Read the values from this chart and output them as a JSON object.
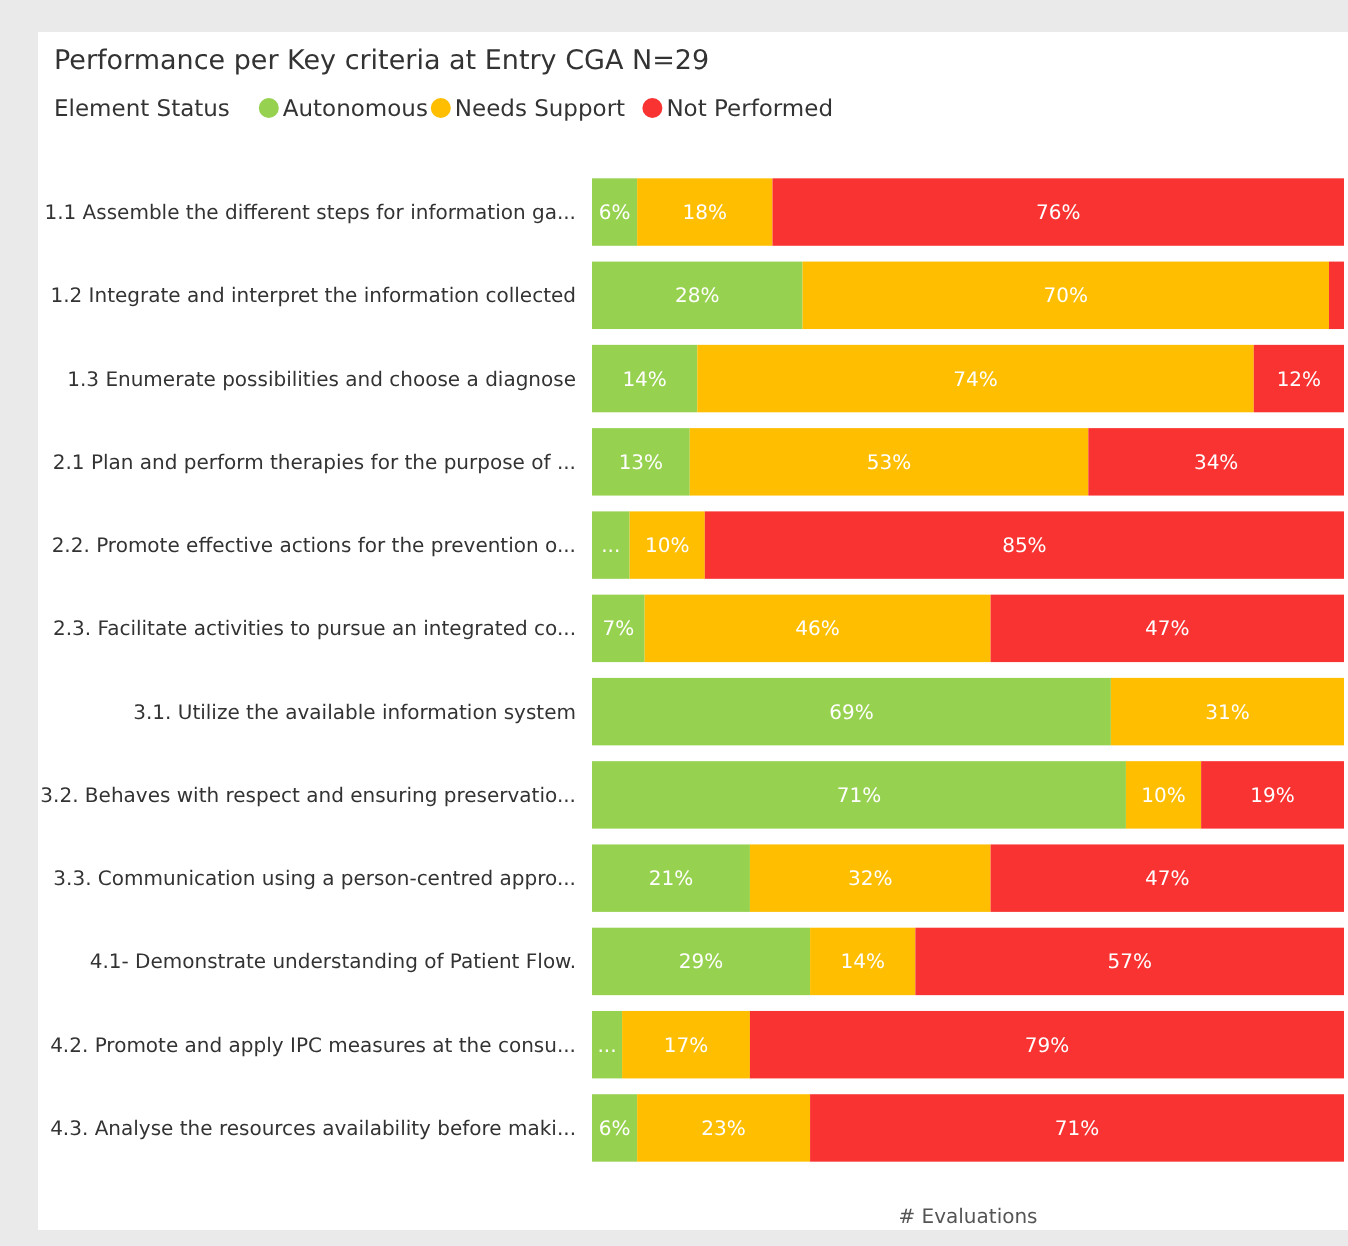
{
  "chart_data": {
    "type": "bar",
    "orientation": "horizontal",
    "stacked": true,
    "title": "Performance per Key criteria at Entry CGA N=29",
    "legend_title": "Element Status",
    "legend": "top left",
    "xlabel": "# Evaluations",
    "tick_labels": "y",
    "xlim": [
      0,
      100
    ],
    "categories": [
      "1.1 Assemble the different steps for information ga...",
      "1.2 Integrate and interpret the information collected",
      "1.3 Enumerate possibilities and choose a diagnose",
      "2.1 Plan and perform therapies for the purpose of ...",
      "2.2. Promote effective actions for the prevention o...",
      "2.3. Facilitate activities to pursue an integrated co...",
      "3.1. Utilize the available information system",
      "3.2. Behaves with respect and ensuring preservatio...",
      "3.3. Communication using a person-centred appro...",
      "4.1- Demonstrate understanding of Patient Flow.",
      "4.2. Promote and apply IPC measures at the consu...",
      "4.3. Analyse the resources availability before maki..."
    ],
    "series": [
      {
        "name": "Autonomous",
        "color": "#96d150",
        "values": [
          6,
          28,
          14,
          13,
          5,
          7,
          69,
          71,
          21,
          29,
          4,
          6
        ],
        "value_labels": [
          "6%",
          "28%",
          "14%",
          "13%",
          "...",
          "7%",
          "69%",
          "71%",
          "21%",
          "29%",
          "...",
          "6%"
        ]
      },
      {
        "name": "Needs Support",
        "color": "#ffbe00",
        "values": [
          18,
          70,
          74,
          53,
          10,
          46,
          31,
          10,
          32,
          14,
          17,
          23
        ],
        "value_labels": [
          "18%",
          "70%",
          "74%",
          "53%",
          "10%",
          "46%",
          "31%",
          "10%",
          "32%",
          "14%",
          "17%",
          "23%"
        ]
      },
      {
        "name": "Not Performed",
        "color": "#f93232",
        "values": [
          76,
          2,
          12,
          34,
          85,
          47,
          0,
          19,
          47,
          57,
          79,
          71
        ],
        "value_labels": [
          "76%",
          null,
          "12%",
          "34%",
          "85%",
          "47%",
          null,
          "19%",
          "47%",
          "57%",
          "79%",
          "71%"
        ]
      }
    ]
  }
}
